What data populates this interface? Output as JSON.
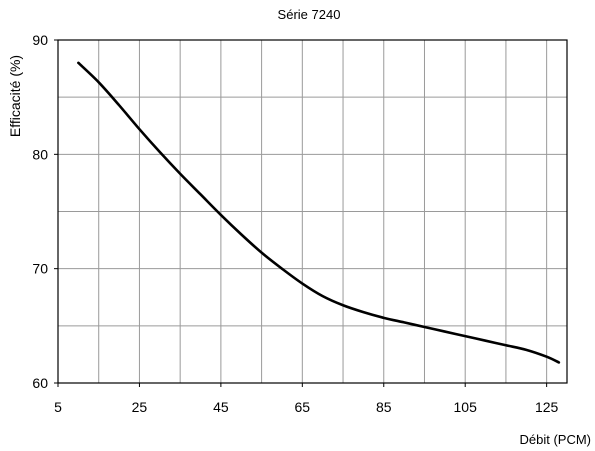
{
  "chart_data": {
    "type": "line",
    "title": "Série 7240",
    "xlabel": "Débit (PCM)",
    "ylabel": "Efficacité (%)",
    "xlim": [
      5,
      130
    ],
    "ylim": [
      60,
      90
    ],
    "x_ticks": [
      "5",
      "25",
      "45",
      "65",
      "85",
      "105",
      "125"
    ],
    "y_ticks": [
      "60",
      "70",
      "80",
      "90"
    ],
    "grid": true,
    "series": [
      {
        "name": "",
        "color": "#000000",
        "x": [
          10,
          15,
          20,
          25,
          30,
          35,
          40,
          45,
          50,
          55,
          60,
          65,
          70,
          75,
          80,
          85,
          90,
          95,
          100,
          105,
          110,
          115,
          120,
          125,
          128
        ],
        "y": [
          88,
          86.3,
          84.3,
          82.2,
          80.2,
          78.3,
          76.5,
          74.7,
          73.0,
          71.4,
          70.0,
          68.7,
          67.6,
          66.8,
          66.2,
          65.7,
          65.3,
          64.9,
          64.5,
          64.1,
          63.7,
          63.3,
          62.9,
          62.3,
          61.8
        ]
      }
    ]
  }
}
